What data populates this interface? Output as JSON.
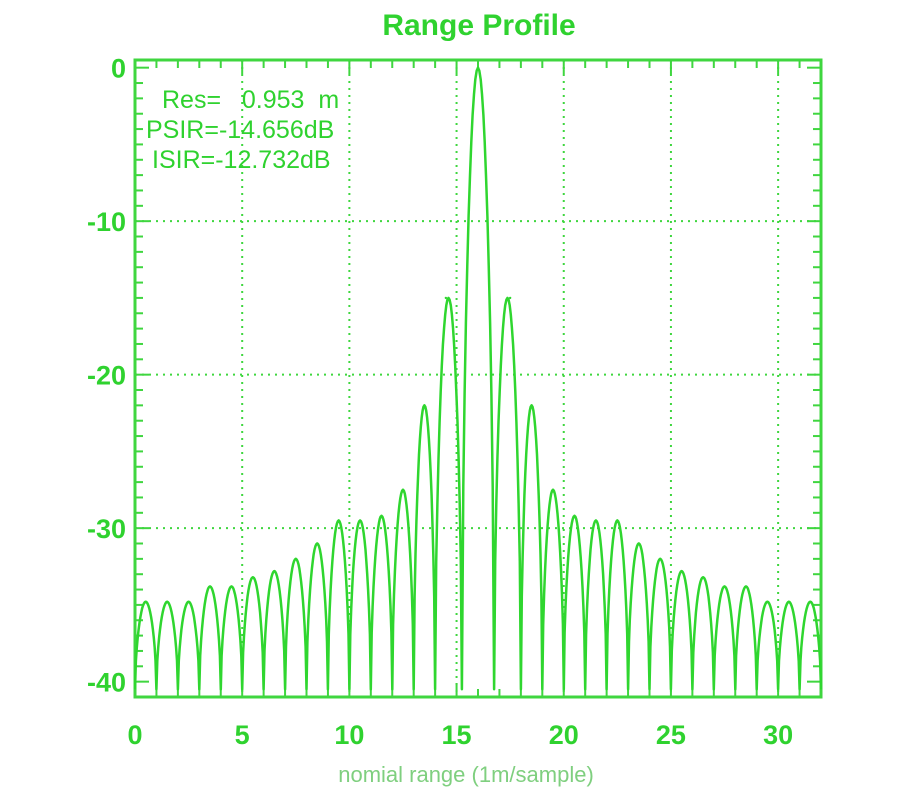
{
  "colors": {
    "trace": "#2fd62f",
    "axis": "#3fd63f",
    "text": "#2fd22f",
    "xlabel_text": "#7fcf7f",
    "background": "#ffffff"
  },
  "chart_data": {
    "type": "line",
    "title": "Range Profile",
    "xlabel": "nomial range (1m/sample)",
    "ylabel": "",
    "xlim": [
      0,
      32
    ],
    "ylim": [
      -41,
      0.5
    ],
    "xticks": [
      0,
      5,
      10,
      15,
      20,
      25,
      30
    ],
    "yticks": [
      0,
      -10,
      -20,
      -30,
      -40
    ],
    "grid": true,
    "grid_style": "dotted",
    "annotations": [
      "Res=   0.953  m",
      "PSIR=-14.656dB",
      "ISIR=-12.732dB"
    ],
    "series": [
      {
        "x": [
          0.5,
          1.5,
          2.5,
          3.5,
          4.5,
          5.5,
          6.5,
          7.5,
          8.5,
          9.5,
          10.5,
          11.5,
          12.5,
          13.5,
          14.5,
          16.0,
          17.5,
          18.5,
          19.5,
          20.5,
          21.5,
          22.5,
          23.5,
          24.5,
          25.5,
          26.5,
          27.5,
          28.5,
          29.5,
          30.5,
          31.5
        ],
        "peaks": [
          -34.8,
          -34.8,
          -34.8,
          -33.8,
          -33.8,
          -33.2,
          -32.8,
          -32.0,
          -31.0,
          -29.5,
          -29.5,
          -29.2,
          -27.5,
          -22.0,
          -15.0,
          0.0,
          -15.0,
          -22.0,
          -27.5,
          -29.2,
          -29.5,
          -29.5,
          -31.0,
          -32.0,
          -32.8,
          -33.2,
          -33.8,
          -33.8,
          -34.8,
          -34.8,
          -34.8
        ],
        "nulls": [
          -40.5,
          -40.5,
          -40.5,
          -40.5,
          -40.5,
          -40.5,
          -40.5,
          -40.5,
          -40.5,
          -40.5,
          -40.5,
          -40.5,
          -40.5,
          -40.5,
          -40.5,
          -40.5,
          -40.5,
          -40.5,
          -40.5,
          -40.5,
          -40.5,
          -40.5,
          -40.5,
          -40.5,
          -40.5,
          -40.5,
          -40.5,
          -40.5,
          -40.5,
          -40.5,
          -40.5,
          -40.5
        ],
        "peak_half_width": [
          0.35,
          0.35,
          0.35,
          0.35,
          0.35,
          0.35,
          0.35,
          0.35,
          0.35,
          0.35,
          0.35,
          0.35,
          0.35,
          0.35,
          0.35,
          0.75,
          0.35,
          0.35,
          0.35,
          0.35,
          0.35,
          0.35,
          0.35,
          0.35,
          0.35,
          0.35,
          0.35,
          0.35,
          0.35,
          0.35,
          0.35
        ]
      }
    ]
  }
}
